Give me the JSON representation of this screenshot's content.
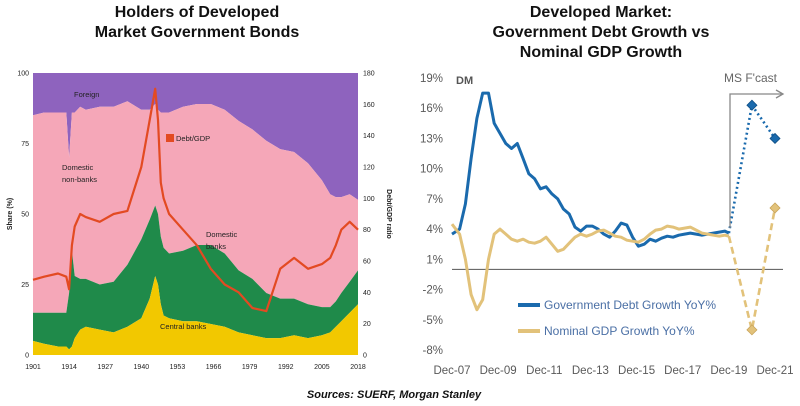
{
  "source": "Sources: SUERF, Morgan Stanley",
  "chart_data": [
    {
      "type": "area",
      "title_lines": [
        "Holders of Developed",
        "Market Government Bonds"
      ],
      "ylabel": "Share (%)",
      "y2label": "Debt/GDP ratio",
      "ylim": [
        0,
        100
      ],
      "y2lim": [
        0,
        180
      ],
      "yticks": [
        "0",
        "25",
        "50",
        "75",
        "100"
      ],
      "y2ticks": [
        "0",
        "20",
        "40",
        "60",
        "80",
        "100",
        "120",
        "140",
        "160",
        "180"
      ],
      "xticks": [
        "1901",
        "1914",
        "1927",
        "1940",
        "1953",
        "1966",
        "1979",
        "1992",
        "2005",
        "2018"
      ],
      "area_labels": {
        "foreign": "Foreign",
        "domestic_nonbanks": [
          "Domestic",
          "non-banks"
        ],
        "domestic_banks": [
          "Domestic",
          "banks"
        ],
        "central_banks": "Central banks"
      },
      "colors": {
        "foreign": "#8e63be",
        "domestic_nonbanks": "#f5a7b8",
        "domestic_banks": "#1f8a4a",
        "central_banks": "#f2c800",
        "debt_gdp": "#e34a22"
      },
      "series_legend": "Debt/GDP",
      "x": [
        1901,
        1905,
        1910,
        1913,
        1914,
        1915,
        1916,
        1918,
        1920,
        1925,
        1930,
        1935,
        1940,
        1943,
        1945,
        1946,
        1947,
        1948,
        1950,
        1955,
        1960,
        1965,
        1970,
        1975,
        1980,
        1985,
        1990,
        1995,
        2000,
        2005,
        2008,
        2010,
        2012,
        2015,
        2018
      ],
      "central_banks": [
        5,
        4,
        3,
        3,
        2,
        3,
        6,
        9,
        10,
        9,
        8,
        10,
        13,
        20,
        28,
        25,
        18,
        14,
        13,
        12,
        12,
        11,
        10,
        8,
        7,
        6,
        6,
        7,
        6,
        7,
        8,
        10,
        12,
        15,
        18
      ],
      "domestic_banks": [
        10,
        11,
        12,
        12,
        20,
        34,
        22,
        18,
        17,
        16,
        18,
        22,
        28,
        28,
        25,
        25,
        24,
        24,
        23,
        25,
        27,
        28,
        26,
        22,
        20,
        16,
        14,
        13,
        12,
        10,
        9,
        9,
        10,
        11,
        12
      ],
      "domestic_nonbanks": [
        70,
        71,
        71,
        71,
        48,
        49,
        58,
        61,
        60,
        63,
        62,
        58,
        46,
        39,
        36,
        37,
        44,
        48,
        50,
        51,
        50,
        50,
        51,
        53,
        53,
        54,
        53,
        52,
        50,
        45,
        40,
        37,
        34,
        31,
        25
      ],
      "debt_gdp": [
        48,
        50,
        52,
        50,
        42,
        70,
        82,
        90,
        88,
        85,
        90,
        92,
        120,
        150,
        170,
        150,
        110,
        100,
        90,
        80,
        70,
        55,
        45,
        40,
        30,
        28,
        55,
        62,
        55,
        58,
        62,
        70,
        80,
        85,
        80
      ]
    },
    {
      "type": "line",
      "title_lines": [
        "Developed Market:",
        "Government Debt Growth vs",
        "Nominal GDP Growth"
      ],
      "corner_label": "DM",
      "forecast_label": "MS F'cast",
      "yticks": [
        "19%",
        "16%",
        "13%",
        "10%",
        "7%",
        "4%",
        "1%",
        "-2%",
        "-5%",
        "-8%"
      ],
      "ytick_values": [
        19,
        16,
        13,
        10,
        7,
        4,
        1,
        -2,
        -5,
        -8
      ],
      "ylim": [
        -8,
        19
      ],
      "xticks": [
        "Dec-07",
        "Dec-09",
        "Dec-11",
        "Dec-13",
        "Dec-15",
        "Dec-17",
        "Dec-19",
        "Dec-21"
      ],
      "xlim": [
        2007.92,
        2021.92
      ],
      "series": [
        {
          "name": "Government Debt Growth YoY%",
          "color": "#1a6aad",
          "x": [
            2007.92,
            2008.25,
            2008.5,
            2008.75,
            2009.0,
            2009.25,
            2009.5,
            2009.75,
            2010.0,
            2010.25,
            2010.5,
            2010.75,
            2011.0,
            2011.25,
            2011.5,
            2011.75,
            2012.0,
            2012.25,
            2012.5,
            2012.75,
            2013.0,
            2013.25,
            2013.5,
            2013.75,
            2014.0,
            2014.25,
            2014.5,
            2014.75,
            2015.0,
            2015.25,
            2015.5,
            2015.75,
            2016.0,
            2016.25,
            2016.5,
            2016.75,
            2017.0,
            2017.25,
            2017.5,
            2017.75,
            2018.0,
            2018.25,
            2018.5,
            2018.75,
            2019.0,
            2019.25,
            2019.5,
            2019.75,
            2019.92
          ],
          "y": [
            3.5,
            4.0,
            6.5,
            11.0,
            15.0,
            17.5,
            17.5,
            14.5,
            13.5,
            12.5,
            12.0,
            12.5,
            11.0,
            9.5,
            9.0,
            8.0,
            8.2,
            7.5,
            7.0,
            6.0,
            5.5,
            4.2,
            3.8,
            4.3,
            4.3,
            4.0,
            3.5,
            3.2,
            3.8,
            4.6,
            4.4,
            3.2,
            2.3,
            2.5,
            3.0,
            2.8,
            3.1,
            3.3,
            3.2,
            3.4,
            3.5,
            3.6,
            3.5,
            3.4,
            3.5,
            3.6,
            3.7,
            3.8,
            3.6
          ],
          "forecast": {
            "x": [
              2019.92,
              2020.92,
              2021.92
            ],
            "y": [
              3.6,
              16.3,
              13.0
            ]
          }
        },
        {
          "name": "Nominal GDP Growth YoY%",
          "color": "#e2c27a",
          "x": [
            2007.92,
            2008.25,
            2008.5,
            2008.75,
            2009.0,
            2009.25,
            2009.5,
            2009.75,
            2010.0,
            2010.25,
            2010.5,
            2010.75,
            2011.0,
            2011.25,
            2011.5,
            2011.75,
            2012.0,
            2012.25,
            2012.5,
            2012.75,
            2013.0,
            2013.25,
            2013.5,
            2013.75,
            2014.0,
            2014.25,
            2014.5,
            2014.75,
            2015.0,
            2015.25,
            2015.5,
            2015.75,
            2016.0,
            2016.25,
            2016.5,
            2016.75,
            2017.0,
            2017.25,
            2017.5,
            2017.75,
            2018.0,
            2018.25,
            2018.5,
            2018.75,
            2019.0,
            2019.25,
            2019.5,
            2019.75,
            2019.92
          ],
          "y": [
            4.5,
            3.5,
            1.0,
            -2.5,
            -4.0,
            -3.0,
            1.0,
            3.5,
            4.0,
            3.5,
            3.0,
            2.8,
            3.0,
            2.7,
            2.6,
            2.8,
            3.2,
            2.5,
            1.8,
            2.0,
            2.6,
            3.2,
            3.5,
            3.3,
            3.5,
            3.8,
            3.9,
            3.6,
            3.3,
            3.2,
            2.9,
            2.8,
            2.7,
            3.0,
            3.5,
            3.9,
            4.0,
            4.3,
            4.2,
            4.0,
            4.1,
            4.2,
            3.9,
            3.6,
            3.5,
            3.4,
            3.3,
            3.4,
            3.3
          ],
          "forecast": {
            "x": [
              2019.92,
              2020.92,
              2021.92
            ],
            "y": [
              3.3,
              -6.0,
              6.1
            ]
          }
        }
      ]
    }
  ]
}
